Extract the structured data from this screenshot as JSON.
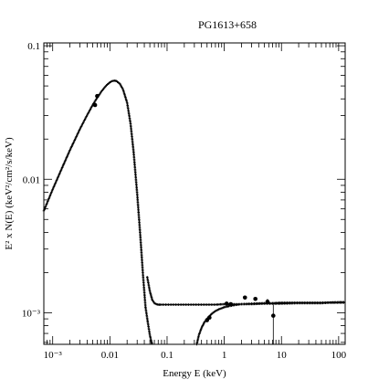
{
  "chart_data": {
    "type": "scatter",
    "title": "PG1613+658",
    "xlabel": "Energy E (keV)",
    "ylabel": "E² x N(E) (keV²/cm²/s/keV)",
    "xscale": "log",
    "yscale": "log",
    "xlim": [
      0.0007,
      130
    ],
    "ylim": [
      0.00058,
      0.105
    ],
    "x_ticks": [
      {
        "value": 0.001,
        "label": "10⁻³"
      },
      {
        "value": 0.01,
        "label": "0.01"
      },
      {
        "value": 0.1,
        "label": "0.1"
      },
      {
        "value": 1,
        "label": "1"
      },
      {
        "value": 10,
        "label": "10"
      },
      {
        "value": 100,
        "label": "100"
      }
    ],
    "y_ticks": [
      {
        "value": 0.1,
        "label": "0.1"
      },
      {
        "value": 0.01,
        "label": "0.01"
      },
      {
        "value": 0.001,
        "label": "10⁻³"
      }
    ],
    "grid": false,
    "series": [
      {
        "style": "dotted-curve",
        "color": "#000000",
        "x": [
          0.0007,
          0.001,
          0.0015,
          0.002,
          0.003,
          0.004,
          0.005,
          0.006,
          0.007,
          0.008,
          0.009,
          0.01,
          0.011,
          0.012,
          0.013,
          0.015,
          0.017,
          0.02,
          0.023,
          0.026,
          0.03,
          0.034,
          0.038,
          0.042,
          0.046,
          0.05,
          0.053,
          0.055
        ],
        "y": [
          0.0058,
          0.0084,
          0.0125,
          0.0165,
          0.0238,
          0.0302,
          0.036,
          0.0408,
          0.045,
          0.0485,
          0.0512,
          0.0532,
          0.0544,
          0.0548,
          0.0544,
          0.0518,
          0.047,
          0.0375,
          0.026,
          0.016,
          0.0078,
          0.0038,
          0.0019,
          0.0011,
          0.00085,
          0.00068,
          0.00061,
          0.00058
        ]
      },
      {
        "style": "dotted-curve",
        "color": "#000000",
        "x": [
          0.045,
          0.05,
          0.055,
          0.06,
          0.065,
          0.07,
          0.08,
          0.1,
          0.15,
          0.2,
          0.3,
          0.5,
          0.7,
          1,
          2,
          3,
          5,
          7,
          10,
          20,
          30,
          50,
          70,
          100,
          130
        ],
        "y": [
          0.00185,
          0.00145,
          0.00125,
          0.00118,
          0.00116,
          0.00115,
          0.00115,
          0.00115,
          0.00115,
          0.00115,
          0.00115,
          0.00115,
          0.00115,
          0.00116,
          0.00116,
          0.00116,
          0.00117,
          0.00117,
          0.00117,
          0.00118,
          0.00118,
          0.00118,
          0.00119,
          0.00119,
          0.00119
        ]
      },
      {
        "style": "dotted-curve",
        "color": "#000000",
        "x": [
          0.33,
          0.36,
          0.4,
          0.45,
          0.5,
          0.55,
          0.6,
          0.7,
          0.8,
          1.0,
          1.2,
          1.5,
          2,
          3,
          5,
          7,
          10,
          20,
          50,
          100,
          130
        ],
        "y": [
          0.00058,
          0.00068,
          0.00077,
          0.00085,
          0.0009,
          0.00094,
          0.00098,
          0.00103,
          0.00106,
          0.0011,
          0.00112,
          0.00114,
          0.00116,
          0.00117,
          0.00118,
          0.00118,
          0.00119,
          0.00119,
          0.00119,
          0.0012,
          0.0012
        ]
      },
      {
        "style": "points-with-errors",
        "color": "#000000",
        "x": [
          0.0055,
          0.006,
          0.5,
          0.55,
          1.1,
          1.3,
          2.3,
          3.5,
          5.7,
          7.2
        ],
        "y": [
          0.036,
          0.042,
          0.00088,
          0.00092,
          0.00117,
          0.00116,
          0.0013,
          0.00127,
          0.00121,
          0.00095
        ],
        "yerr_low": [
          0.001,
          0.001,
          3e-05,
          3e-05,
          3e-05,
          3e-05,
          4e-05,
          4e-05,
          4e-05,
          0.00037
        ],
        "yerr_high": [
          0.001,
          0.001,
          3e-05,
          3e-05,
          3e-05,
          3e-05,
          4e-05,
          4e-05,
          6e-05,
          0.0002
        ]
      }
    ]
  }
}
